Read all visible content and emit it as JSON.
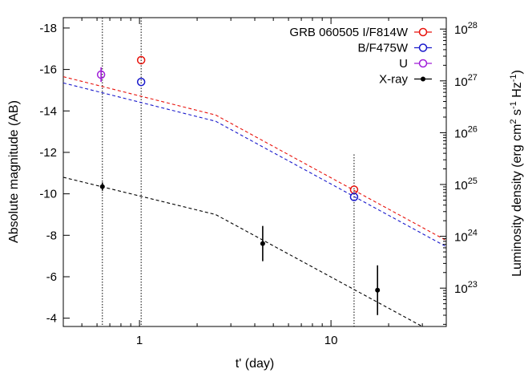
{
  "chart_data": {
    "type": "scatter",
    "xlabel": "t' (day)",
    "ylabel": "Absolute magnitude (AB)",
    "y2label": "Luminosity density (erg cm$^2$ s$^{-1}$ Hz$^{-1}$)",
    "x_scale": "log",
    "xlim": [
      0.4,
      40
    ],
    "ylim": [
      -3.6,
      -18.5
    ],
    "y_inverted": true,
    "x_ticks": [
      {
        "value": 1,
        "label": "1"
      },
      {
        "value": 10,
        "label": "10"
      }
    ],
    "y_ticks": [
      -18,
      -16,
      -14,
      -12,
      -10,
      -8,
      -6,
      -4
    ],
    "y2_ticks": [
      {
        "mag": -5.45,
        "base": "10",
        "exp": "23"
      },
      {
        "mag": -7.95,
        "base": "10",
        "exp": "24"
      },
      {
        "mag": -10.45,
        "base": "10",
        "exp": "25"
      },
      {
        "mag": -12.95,
        "base": "10",
        "exp": "26"
      },
      {
        "mag": -15.45,
        "base": "10",
        "exp": "27"
      },
      {
        "mag": -17.95,
        "base": "10",
        "exp": "28"
      }
    ],
    "grid": false,
    "legend_position": "top-right",
    "series": [
      {
        "name": "GRB 060505 I/F814W",
        "color": "#e8130c",
        "marker": "open-circle",
        "points": [
          {
            "x": 1.02,
            "y": -16.45
          },
          {
            "x": 13.2,
            "y": -10.2
          }
        ]
      },
      {
        "name": "B/F475W",
        "color": "#1a1acc",
        "marker": "open-circle",
        "points": [
          {
            "x": 1.02,
            "y": -15.4
          },
          {
            "x": 13.2,
            "y": -9.85
          }
        ]
      },
      {
        "name": "U",
        "color": "#a01ed8",
        "marker": "open-circle",
        "points": [
          {
            "x": 0.63,
            "y": -15.75,
            "yerr": 0.35
          }
        ]
      },
      {
        "name": "X-ray",
        "color": "#000000",
        "marker": "filled-circle",
        "points": [
          {
            "x": 0.64,
            "y": -10.35,
            "yerr": 0.2
          },
          {
            "x": 4.4,
            "y": -7.6,
            "yerr": 0.85
          },
          {
            "x": 17.5,
            "y": -5.35,
            "yerr": 1.2
          }
        ]
      }
    ],
    "model_lines": [
      {
        "color": "#e8130c",
        "points": [
          {
            "x": 0.4,
            "y": -15.65
          },
          {
            "x": 2.5,
            "y": -13.8
          },
          {
            "x": 40,
            "y": -7.75
          }
        ]
      },
      {
        "color": "#1a1acc",
        "points": [
          {
            "x": 0.4,
            "y": -15.35
          },
          {
            "x": 2.5,
            "y": -13.5
          },
          {
            "x": 40,
            "y": -7.45
          }
        ]
      },
      {
        "color": "#000000",
        "points": [
          {
            "x": 0.4,
            "y": -10.8
          },
          {
            "x": 2.5,
            "y": -9.0
          },
          {
            "x": 30,
            "y": -3.6
          }
        ]
      }
    ],
    "epoch_lines": [
      {
        "x": 0.64,
        "y_top": -18.5,
        "y_bottom": -3.6
      },
      {
        "x": 1.02,
        "y_top": -18.5,
        "y_bottom": -3.6
      },
      {
        "x": 13.2,
        "y_top": -11.9,
        "y_bottom": -3.6
      }
    ]
  }
}
